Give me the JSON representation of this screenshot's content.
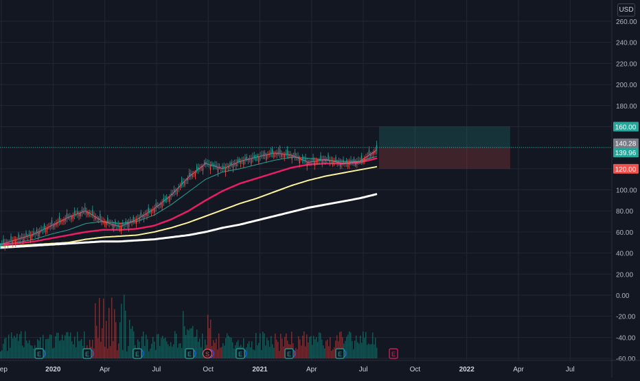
{
  "price_axis": {
    "currency": "USD",
    "ticks": [
      "260.00",
      "240.00",
      "220.00",
      "200.00",
      "180.00",
      "160.00",
      "140.00",
      "120.00",
      "100.00",
      "80.00",
      "60.00",
      "40.00",
      "20.00",
      "0.00",
      "-20.00",
      "-40.00",
      "-60.00"
    ],
    "tick_values": [
      260,
      240,
      220,
      200,
      180,
      160,
      140,
      120,
      100,
      80,
      60,
      40,
      20,
      0,
      -20,
      -40,
      -60
    ]
  },
  "time_axis": {
    "labels": [
      "Sep",
      "2020",
      "Apr",
      "Jul",
      "Oct",
      "2021",
      "Apr",
      "Jul",
      "Oct",
      "2022",
      "Apr",
      "Jul"
    ],
    "bold": [
      false,
      true,
      false,
      false,
      false,
      true,
      false,
      false,
      false,
      true,
      false,
      false
    ]
  },
  "price_labels": [
    {
      "text": "160.00",
      "value": 160,
      "color": "#26a69a",
      "role": "target"
    },
    {
      "text": "140.28",
      "value": 140.28,
      "color": "#787b86",
      "role": "entry"
    },
    {
      "text": "139.96",
      "value": 139.96,
      "color": "#26a69a",
      "role": "last"
    },
    {
      "text": "120.00",
      "value": 120,
      "color": "#ef5350",
      "role": "stop"
    }
  ],
  "position_tool": {
    "target": 160,
    "entry": 140.28,
    "stop": 120,
    "start": "Jul 2021",
    "end": "Mar 2022"
  },
  "events": [
    {
      "type": "E",
      "label": "E"
    },
    {
      "type": "E",
      "label": "E"
    },
    {
      "type": "E",
      "label": "E"
    },
    {
      "type": "E",
      "label": "E"
    },
    {
      "type": "S",
      "label": "S"
    },
    {
      "type": "E",
      "label": "E"
    },
    {
      "type": "E",
      "label": "E"
    },
    {
      "type": "E",
      "label": "E"
    },
    {
      "type": "E",
      "label": "E",
      "upcoming": true
    }
  ],
  "colors": {
    "background": "#131722",
    "grid": "#242733",
    "up": "#26a69a",
    "down": "#ef5350",
    "ma_fast": "#f06292",
    "ma_mid": "#26a69a",
    "ma_slow": "#e91e63",
    "ma_200": "#fff59d",
    "ma_long": "#ffffff"
  },
  "chart_data": {
    "type": "line",
    "y_unit": "USD",
    "ylim": [
      -60,
      260
    ],
    "x": [
      "Sep 2019",
      "Oct 2019",
      "Nov 2019",
      "Dec 2019",
      "Jan 2020",
      "Feb 2020",
      "Mar 2020",
      "Apr 2020",
      "May 2020",
      "Jun 2020",
      "Jul 2020",
      "Aug 2020",
      "Sep 2020",
      "Oct 2020",
      "Nov 2020",
      "Dec 2020",
      "Jan 2021",
      "Feb 2021",
      "Mar 2021",
      "Apr 2021",
      "May 2021",
      "Jun 2021",
      "Jul 2021"
    ],
    "series": [
      {
        "values": [
          48,
          53,
          58,
          66,
          74,
          80,
          70,
          65,
          72,
          82,
          95,
          112,
          125,
          120,
          127,
          131,
          135,
          133,
          126,
          129,
          125,
          127,
          138
        ]
      },
      {
        "values": [
          48,
          50,
          53,
          58,
          62,
          68,
          70,
          68,
          70,
          76,
          86,
          98,
          110,
          117,
          120,
          124,
          128,
          131,
          130,
          128,
          127,
          127,
          132
        ]
      },
      {
        "values": [
          48,
          49,
          51,
          54,
          57,
          60,
          62,
          62,
          63,
          66,
          72,
          80,
          90,
          99,
          106,
          111,
          116,
          121,
          124,
          125,
          125,
          126,
          130
        ]
      },
      {
        "values": [
          46,
          47,
          48,
          49,
          50,
          53,
          55,
          56,
          57,
          60,
          64,
          69,
          75,
          81,
          87,
          92,
          98,
          104,
          109,
          113,
          116,
          119,
          122
        ]
      },
      {
        "values": [
          45,
          46,
          47,
          48,
          49,
          50,
          51,
          51,
          52,
          53,
          55,
          57,
          60,
          64,
          67,
          71,
          75,
          79,
          83,
          86,
          89,
          92,
          96
        ]
      }
    ]
  }
}
